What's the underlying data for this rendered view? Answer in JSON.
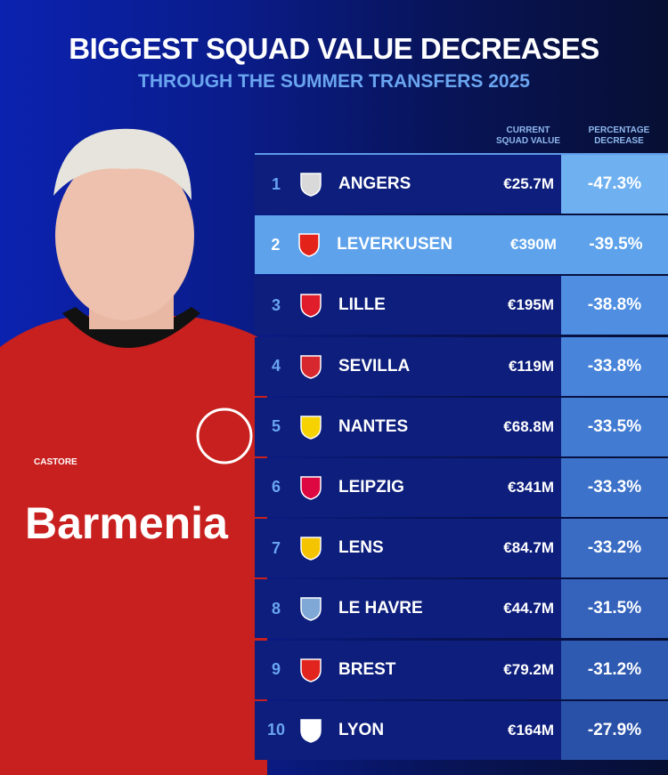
{
  "header": {
    "title": "BIGGEST SQUAD VALUE DECREASES",
    "subtitle": "THROUGH THE SUMMER TRANSFERS 2025"
  },
  "photo": {
    "sponsor_logo": "Barmenia",
    "kit_logo": "CASTORE"
  },
  "colors": {
    "row": "#0d1e7c",
    "highlight": "#5da2ea",
    "accent": "#6aa5f0"
  },
  "chart_data": {
    "type": "table",
    "title": "BIGGEST SQUAD VALUE DECREASES",
    "subtitle": "THROUGH THE SUMMER TRANSFERS 2025",
    "columns": [
      "CURRENT SQUAD VALUE",
      "PERCENTAGE DECREASE"
    ],
    "highlighted_rank": 2,
    "rows": [
      {
        "rank": "1",
        "club": "ANGERS",
        "value": "€25.7M",
        "decrease": "-47.3%",
        "pct": -47.3,
        "logo": "angers-crest-icon",
        "logo_color": "#d9d9d9"
      },
      {
        "rank": "2",
        "club": "LEVERKUSEN",
        "value": "€390M",
        "decrease": "-39.5%",
        "pct": -39.5,
        "logo": "leverkusen-crest-icon",
        "logo_color": "#e32219"
      },
      {
        "rank": "3",
        "club": "LILLE",
        "value": "€195M",
        "decrease": "-38.8%",
        "pct": -38.8,
        "logo": "lille-crest-icon",
        "logo_color": "#e01e2b"
      },
      {
        "rank": "4",
        "club": "SEVILLA",
        "value": "€119M",
        "decrease": "-33.8%",
        "pct": -33.8,
        "logo": "sevilla-crest-icon",
        "logo_color": "#d8282f"
      },
      {
        "rank": "5",
        "club": "NANTES",
        "value": "€68.8M",
        "decrease": "-33.5%",
        "pct": -33.5,
        "logo": "nantes-crest-icon",
        "logo_color": "#f5d200"
      },
      {
        "rank": "6",
        "club": "LEIPZIG",
        "value": "€341M",
        "decrease": "-33.3%",
        "pct": -33.3,
        "logo": "leipzig-crest-icon",
        "logo_color": "#dd0741"
      },
      {
        "rank": "7",
        "club": "LENS",
        "value": "€84.7M",
        "decrease": "-33.2%",
        "pct": -33.2,
        "logo": "lens-crest-icon",
        "logo_color": "#f5c400"
      },
      {
        "rank": "8",
        "club": "LE HAVRE",
        "value": "€44.7M",
        "decrease": "-31.5%",
        "pct": -31.5,
        "logo": "le-havre-crest-icon",
        "logo_color": "#7fa8d6"
      },
      {
        "rank": "9",
        "club": "BREST",
        "value": "€79.2M",
        "decrease": "-31.2%",
        "pct": -31.2,
        "logo": "brest-crest-icon",
        "logo_color": "#e2241f"
      },
      {
        "rank": "10",
        "club": "LYON",
        "value": "€164M",
        "decrease": "-27.9%",
        "pct": -27.9,
        "logo": "lyon-crest-icon",
        "logo_color": "#ffffff"
      }
    ]
  }
}
